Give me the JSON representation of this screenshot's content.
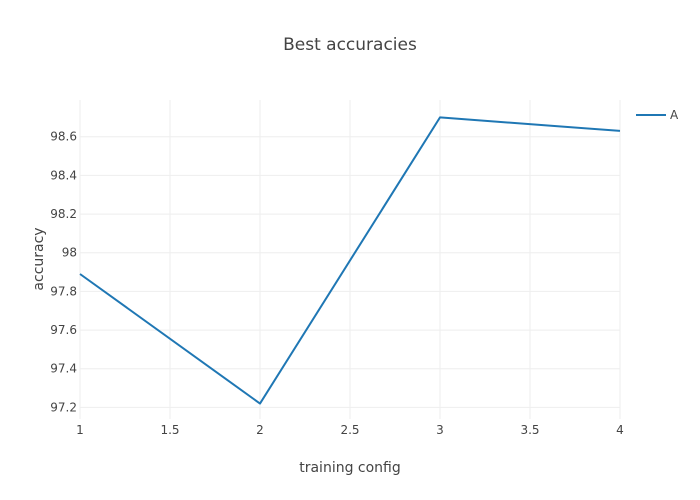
{
  "chart_data": {
    "type": "line",
    "title": "Best accuracies",
    "xlabel": "training config",
    "ylabel": "accuracy",
    "x_ticks": [
      "1",
      "1.5",
      "2",
      "2.5",
      "3",
      "3.5",
      "4"
    ],
    "y_ticks": [
      "97.2",
      "97.4",
      "97.6",
      "97.8",
      "98",
      "98.2",
      "98.4",
      "98.6"
    ],
    "xlim": [
      1,
      4
    ],
    "ylim": [
      97.14,
      98.79
    ],
    "grid": true,
    "legend_position": "top-right",
    "series": [
      {
        "name": "A",
        "color": "#1f77b4",
        "x": [
          1,
          2,
          3,
          4
        ],
        "y": [
          97.89,
          97.22,
          98.7,
          98.63
        ]
      }
    ]
  }
}
